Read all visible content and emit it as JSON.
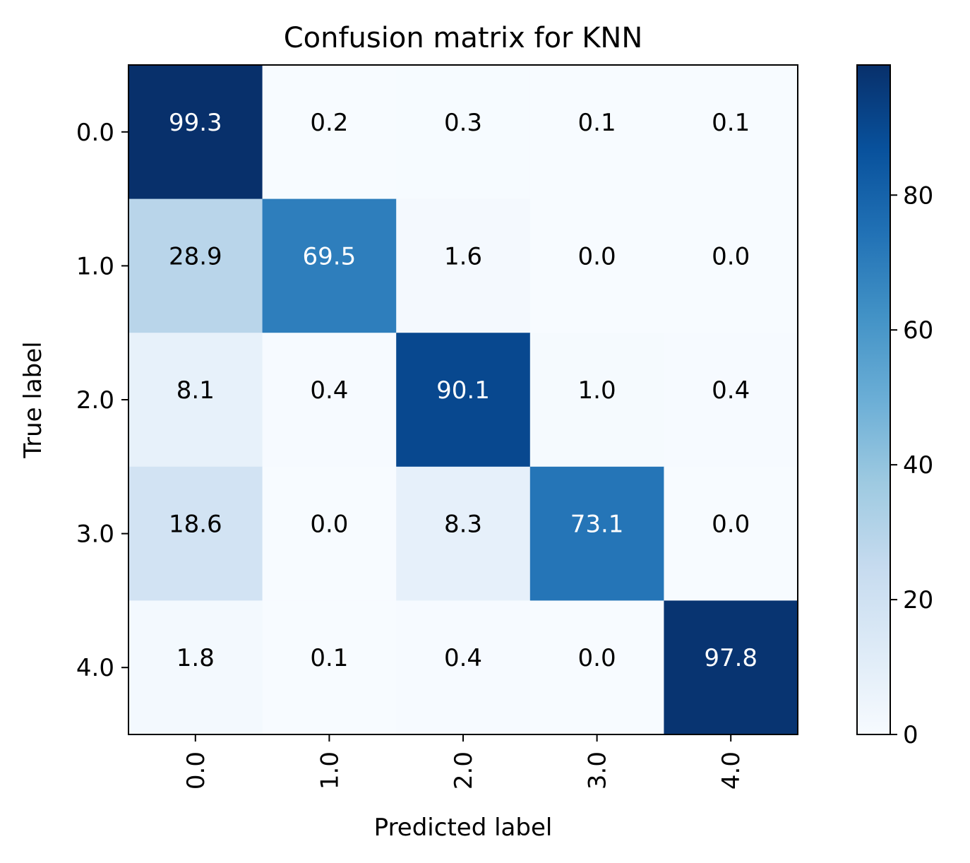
{
  "chart_data": {
    "type": "heatmap",
    "title": "Confusion matrix for KNN",
    "xlabel": "Predicted label",
    "ylabel": "True label",
    "x_categories": [
      "0.0",
      "1.0",
      "2.0",
      "3.0",
      "4.0"
    ],
    "y_categories": [
      "0.0",
      "1.0",
      "2.0",
      "3.0",
      "4.0"
    ],
    "values": [
      [
        "99.3",
        "0.2",
        "0.3",
        "0.1",
        "0.1"
      ],
      [
        "28.9",
        "69.5",
        "1.6",
        "0.0",
        "0.0"
      ],
      [
        "8.1",
        "0.4",
        "90.1",
        "1.0",
        "0.4"
      ],
      [
        "18.6",
        "0.0",
        "8.3",
        "73.1",
        "0.0"
      ],
      [
        "1.8",
        "0.1",
        "0.4",
        "0.0",
        "97.8"
      ]
    ],
    "colorscale": "Blues",
    "colorbar": {
      "range": [
        0,
        99.3
      ],
      "ticks": [
        "0",
        "20",
        "40",
        "60",
        "80"
      ]
    },
    "colors": {
      "text_dark": "#000000",
      "text_light": "#ffffff"
    },
    "grid": false
  }
}
